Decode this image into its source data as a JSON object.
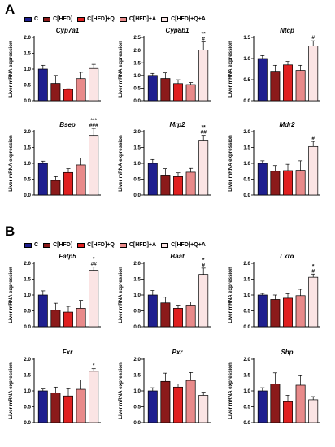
{
  "panels": [
    {
      "letter": "A"
    },
    {
      "letter": "B"
    }
  ],
  "legend_items": [
    {
      "label": "C",
      "color": "#1f1f8f"
    },
    {
      "label": "C[HFD]",
      "color": "#8b1a1a"
    },
    {
      "label": "C[HFD]+Q",
      "color": "#e02020"
    },
    {
      "label": "C[HFD]+A",
      "color": "#e88a8a"
    },
    {
      "label": "C[HFD]+Q+A",
      "color": "#fbe4e4"
    }
  ],
  "chart_data": [
    {
      "type": "bar",
      "title": "Cyp7a1",
      "ylabel": "Liver mRNA expression",
      "ylim": [
        0,
        2.0
      ],
      "yticks": [
        "0.0",
        "0.5",
        "1.0",
        "1.5",
        "2.0"
      ],
      "categories": [
        "C",
        "C[HFD]",
        "C[HFD]+Q",
        "C[HFD]+A",
        "C[HFD]+Q+A"
      ],
      "values": [
        1.0,
        0.55,
        0.36,
        0.7,
        1.02
      ],
      "errors": [
        0.12,
        0.25,
        0.02,
        0.2,
        0.13
      ],
      "annotations": [
        "",
        "",
        "",
        "",
        ""
      ]
    },
    {
      "type": "bar",
      "title": "Cyp8b1",
      "ylabel": "Liver mRNA expression",
      "ylim": [
        0,
        2.5
      ],
      "yticks": [
        "0.0",
        "0.5",
        "1.0",
        "1.5",
        "2.0",
        "2.5"
      ],
      "categories": [
        "C",
        "C[HFD]",
        "C[HFD]+Q",
        "C[HFD]+A",
        "C[HFD]+Q+A"
      ],
      "values": [
        1.0,
        0.88,
        0.68,
        0.64,
        2.0
      ],
      "errors": [
        0.08,
        0.22,
        0.15,
        0.08,
        0.32
      ],
      "annotations": [
        "",
        "",
        "",
        "",
        "**\n#"
      ]
    },
    {
      "type": "bar",
      "title": "Ntcp",
      "ylabel": "Liver mRNA expression",
      "ylim": [
        0,
        1.5
      ],
      "yticks": [
        "0.0",
        "0.5",
        "1.0",
        "1.5"
      ],
      "categories": [
        "C",
        "C[HFD]",
        "C[HFD]+Q",
        "C[HFD]+A",
        "C[HFD]+Q+A"
      ],
      "values": [
        1.0,
        0.7,
        0.85,
        0.72,
        1.3
      ],
      "errors": [
        0.07,
        0.14,
        0.08,
        0.12,
        0.12
      ],
      "annotations": [
        "",
        "",
        "",
        "",
        "#"
      ]
    },
    {
      "type": "bar",
      "title": "Bsep",
      "ylabel": "Liver mRNA expression",
      "ylim": [
        0,
        2.0
      ],
      "yticks": [
        "0.0",
        "0.5",
        "1.0",
        "1.5",
        "2.0"
      ],
      "categories": [
        "C",
        "C[HFD]",
        "C[HFD]+Q",
        "C[HFD]+A",
        "C[HFD]+Q+A"
      ],
      "values": [
        1.0,
        0.46,
        0.71,
        0.95,
        1.88
      ],
      "errors": [
        0.07,
        0.12,
        0.12,
        0.22,
        0.22
      ],
      "annotations": [
        "",
        "",
        "",
        "",
        "***\n###"
      ]
    },
    {
      "type": "bar",
      "title": "Mrp2",
      "ylabel": "Liver mRNA expression",
      "ylim": [
        0,
        2.0
      ],
      "yticks": [
        "0.0",
        "0.5",
        "1.0",
        "1.5",
        "2.0"
      ],
      "categories": [
        "C",
        "C[HFD]",
        "C[HFD]+Q",
        "C[HFD]+A",
        "C[HFD]+Q+A"
      ],
      "values": [
        1.0,
        0.63,
        0.58,
        0.72,
        1.73
      ],
      "errors": [
        0.12,
        0.2,
        0.12,
        0.12,
        0.15
      ],
      "annotations": [
        "",
        "",
        "",
        "",
        "**\n##"
      ]
    },
    {
      "type": "bar",
      "title": "Mdr2",
      "ylabel": "Liver mRNA expression",
      "ylim": [
        0,
        2.0
      ],
      "yticks": [
        "0.0",
        "0.5",
        "1.0",
        "1.5",
        "2.0"
      ],
      "categories": [
        "C",
        "C[HFD]",
        "C[HFD]+Q",
        "C[HFD]+A",
        "C[HFD]+Q+A"
      ],
      "values": [
        1.0,
        0.75,
        0.77,
        0.78,
        1.53
      ],
      "errors": [
        0.08,
        0.18,
        0.2,
        0.3,
        0.16
      ],
      "annotations": [
        "",
        "",
        "",
        "",
        "#"
      ]
    },
    {
      "type": "bar",
      "title": "Fatp5",
      "ylabel": "Liver mRNA expression",
      "ylim": [
        0,
        2.0
      ],
      "yticks": [
        "0.0",
        "0.5",
        "1.0",
        "1.5",
        "2.0"
      ],
      "categories": [
        "C",
        "C[HFD]",
        "C[HFD]+Q",
        "C[HFD]+A",
        "C[HFD]+Q+A"
      ],
      "values": [
        1.0,
        0.52,
        0.46,
        0.58,
        1.78
      ],
      "errors": [
        0.13,
        0.22,
        0.18,
        0.25,
        0.1
      ],
      "annotations": [
        "",
        "",
        "",
        "",
        "*\n##"
      ]
    },
    {
      "type": "bar",
      "title": "Baat",
      "ylabel": "Liver mRNA expression",
      "ylim": [
        0,
        2.0
      ],
      "yticks": [
        "0.0",
        "0.5",
        "1.0",
        "1.5",
        "2.0"
      ],
      "categories": [
        "C",
        "C[HFD]",
        "C[HFD]+Q",
        "C[HFD]+A",
        "C[HFD]+Q+A"
      ],
      "values": [
        1.0,
        0.75,
        0.58,
        0.68,
        1.65
      ],
      "errors": [
        0.14,
        0.18,
        0.1,
        0.1,
        0.2
      ],
      "annotations": [
        "",
        "",
        "",
        "",
        "*\n#"
      ]
    },
    {
      "type": "bar",
      "title": "Lxrα",
      "ylabel": "Liver mRNA expression",
      "ylim": [
        0,
        2.0
      ],
      "yticks": [
        "0.0",
        "0.5",
        "1.0",
        "1.5",
        "2.0"
      ],
      "categories": [
        "C",
        "C[HFD]",
        "C[HFD]+Q",
        "C[HFD]+A",
        "C[HFD]+Q+A"
      ],
      "values": [
        1.0,
        0.86,
        0.9,
        0.98,
        1.56
      ],
      "errors": [
        0.05,
        0.14,
        0.14,
        0.2,
        0.1
      ],
      "annotations": [
        "",
        "",
        "",
        "",
        "*\n#"
      ]
    },
    {
      "type": "bar",
      "title": "Fxr",
      "ylabel": "Liver mRNA expression",
      "ylim": [
        0,
        2.0
      ],
      "yticks": [
        "0.0",
        "0.5",
        "1.0",
        "1.5",
        "2.0"
      ],
      "categories": [
        "C",
        "C[HFD]",
        "C[HFD]+Q",
        "C[HFD]+A",
        "C[HFD]+Q+A"
      ],
      "values": [
        1.0,
        0.94,
        0.84,
        1.05,
        1.62
      ],
      "errors": [
        0.06,
        0.18,
        0.23,
        0.3,
        0.08
      ],
      "annotations": [
        "",
        "",
        "",
        "",
        "*"
      ]
    },
    {
      "type": "bar",
      "title": "Pxr",
      "ylabel": "Liver mRNA expression",
      "ylim": [
        0,
        2.0
      ],
      "yticks": [
        "0.0",
        "0.5",
        "1.0",
        "1.5",
        "2.0"
      ],
      "categories": [
        "C",
        "C[HFD]",
        "C[HFD]+Q",
        "C[HFD]+A",
        "C[HFD]+Q+A"
      ],
      "values": [
        1.0,
        1.3,
        1.12,
        1.33,
        0.86
      ],
      "errors": [
        0.1,
        0.26,
        0.1,
        0.25,
        0.1
      ],
      "annotations": [
        "",
        "",
        "",
        "",
        ""
      ]
    },
    {
      "type": "bar",
      "title": "Shp",
      "ylabel": "Liver mRNA expression",
      "ylim": [
        0,
        2.0
      ],
      "yticks": [
        "0.0",
        "0.5",
        "1.0",
        "1.5",
        "2.0"
      ],
      "categories": [
        "C",
        "C[HFD]",
        "C[HFD]+Q",
        "C[HFD]+A",
        "C[HFD]+Q+A"
      ],
      "values": [
        1.0,
        1.22,
        0.66,
        1.18,
        0.72
      ],
      "errors": [
        0.1,
        0.35,
        0.2,
        0.3,
        0.1
      ],
      "annotations": [
        "",
        "",
        "",
        "",
        ""
      ]
    }
  ]
}
